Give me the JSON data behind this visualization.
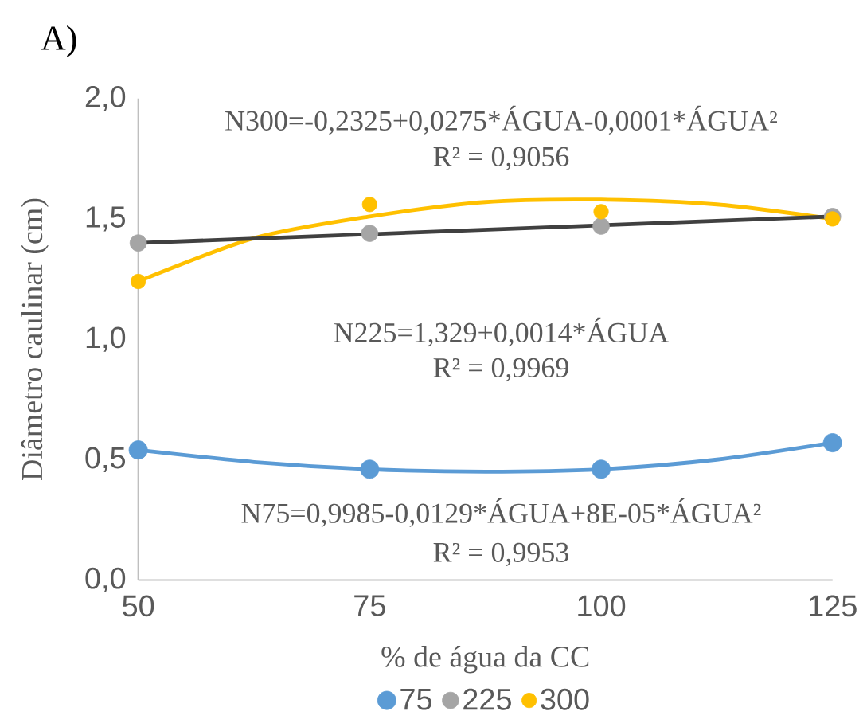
{
  "chart_data": {
    "type": "scatter",
    "title": "A)",
    "xlabel": "% de água da CC",
    "ylabel": "Diâmetro caulinar (cm)",
    "xlim": [
      50,
      125
    ],
    "ylim": [
      0,
      2
    ],
    "xticks": [
      50,
      75,
      100,
      125
    ],
    "yticks": [
      {
        "value": 0,
        "label": "0,0"
      },
      {
        "value": 0.5,
        "label": "0,5"
      },
      {
        "value": 1,
        "label": "1,0"
      },
      {
        "value": 1.5,
        "label": "1,5"
      },
      {
        "value": 2,
        "label": "2,0"
      }
    ],
    "legend": "bottom",
    "x": [
      50,
      75,
      100,
      125
    ],
    "annotations": [
      "N300=-0,2325+0,0275*ÁGUA-0,0001*ÁGUA²",
      "R² = 0,9056",
      "N225=1,329+0,0014*ÁGUA",
      "R² = 0,9969",
      "N75=0,9985-0,0129*ÁGUA+8E-05*ÁGUA²",
      "R² = 0,9953"
    ],
    "series": [
      {
        "name": "75",
        "color": "#5b9bd5",
        "marker": "circle",
        "values": [
          0.54,
          0.46,
          0.46,
          0.57
        ]
      },
      {
        "name": "225",
        "color": "#a5a5a5",
        "marker": "circle",
        "values": [
          1.4,
          1.44,
          1.47,
          1.51
        ]
      },
      {
        "name": "300",
        "color": "#ffc000",
        "marker": "circle",
        "values": [
          1.24,
          1.56,
          1.53,
          1.5
        ]
      },
      {
        "type": "line",
        "color": "#5b9bd5",
        "marker": "none",
        "x": [
          50,
          62.5,
          75,
          87.5,
          100,
          112.5,
          125
        ],
        "values": [
          0.54,
          0.49,
          0.46,
          0.45,
          0.46,
          0.5,
          0.57
        ]
      },
      {
        "type": "line",
        "color": "#404040",
        "marker": "none",
        "x": [
          50,
          125
        ],
        "values": [
          1.4,
          1.51
        ]
      },
      {
        "type": "line",
        "color": "#ffc000",
        "marker": "none",
        "x": [
          50,
          62.5,
          75,
          87.5,
          100,
          112.5,
          125
        ],
        "values": [
          1.24,
          1.42,
          1.51,
          1.57,
          1.58,
          1.56,
          1.5
        ]
      }
    ]
  }
}
